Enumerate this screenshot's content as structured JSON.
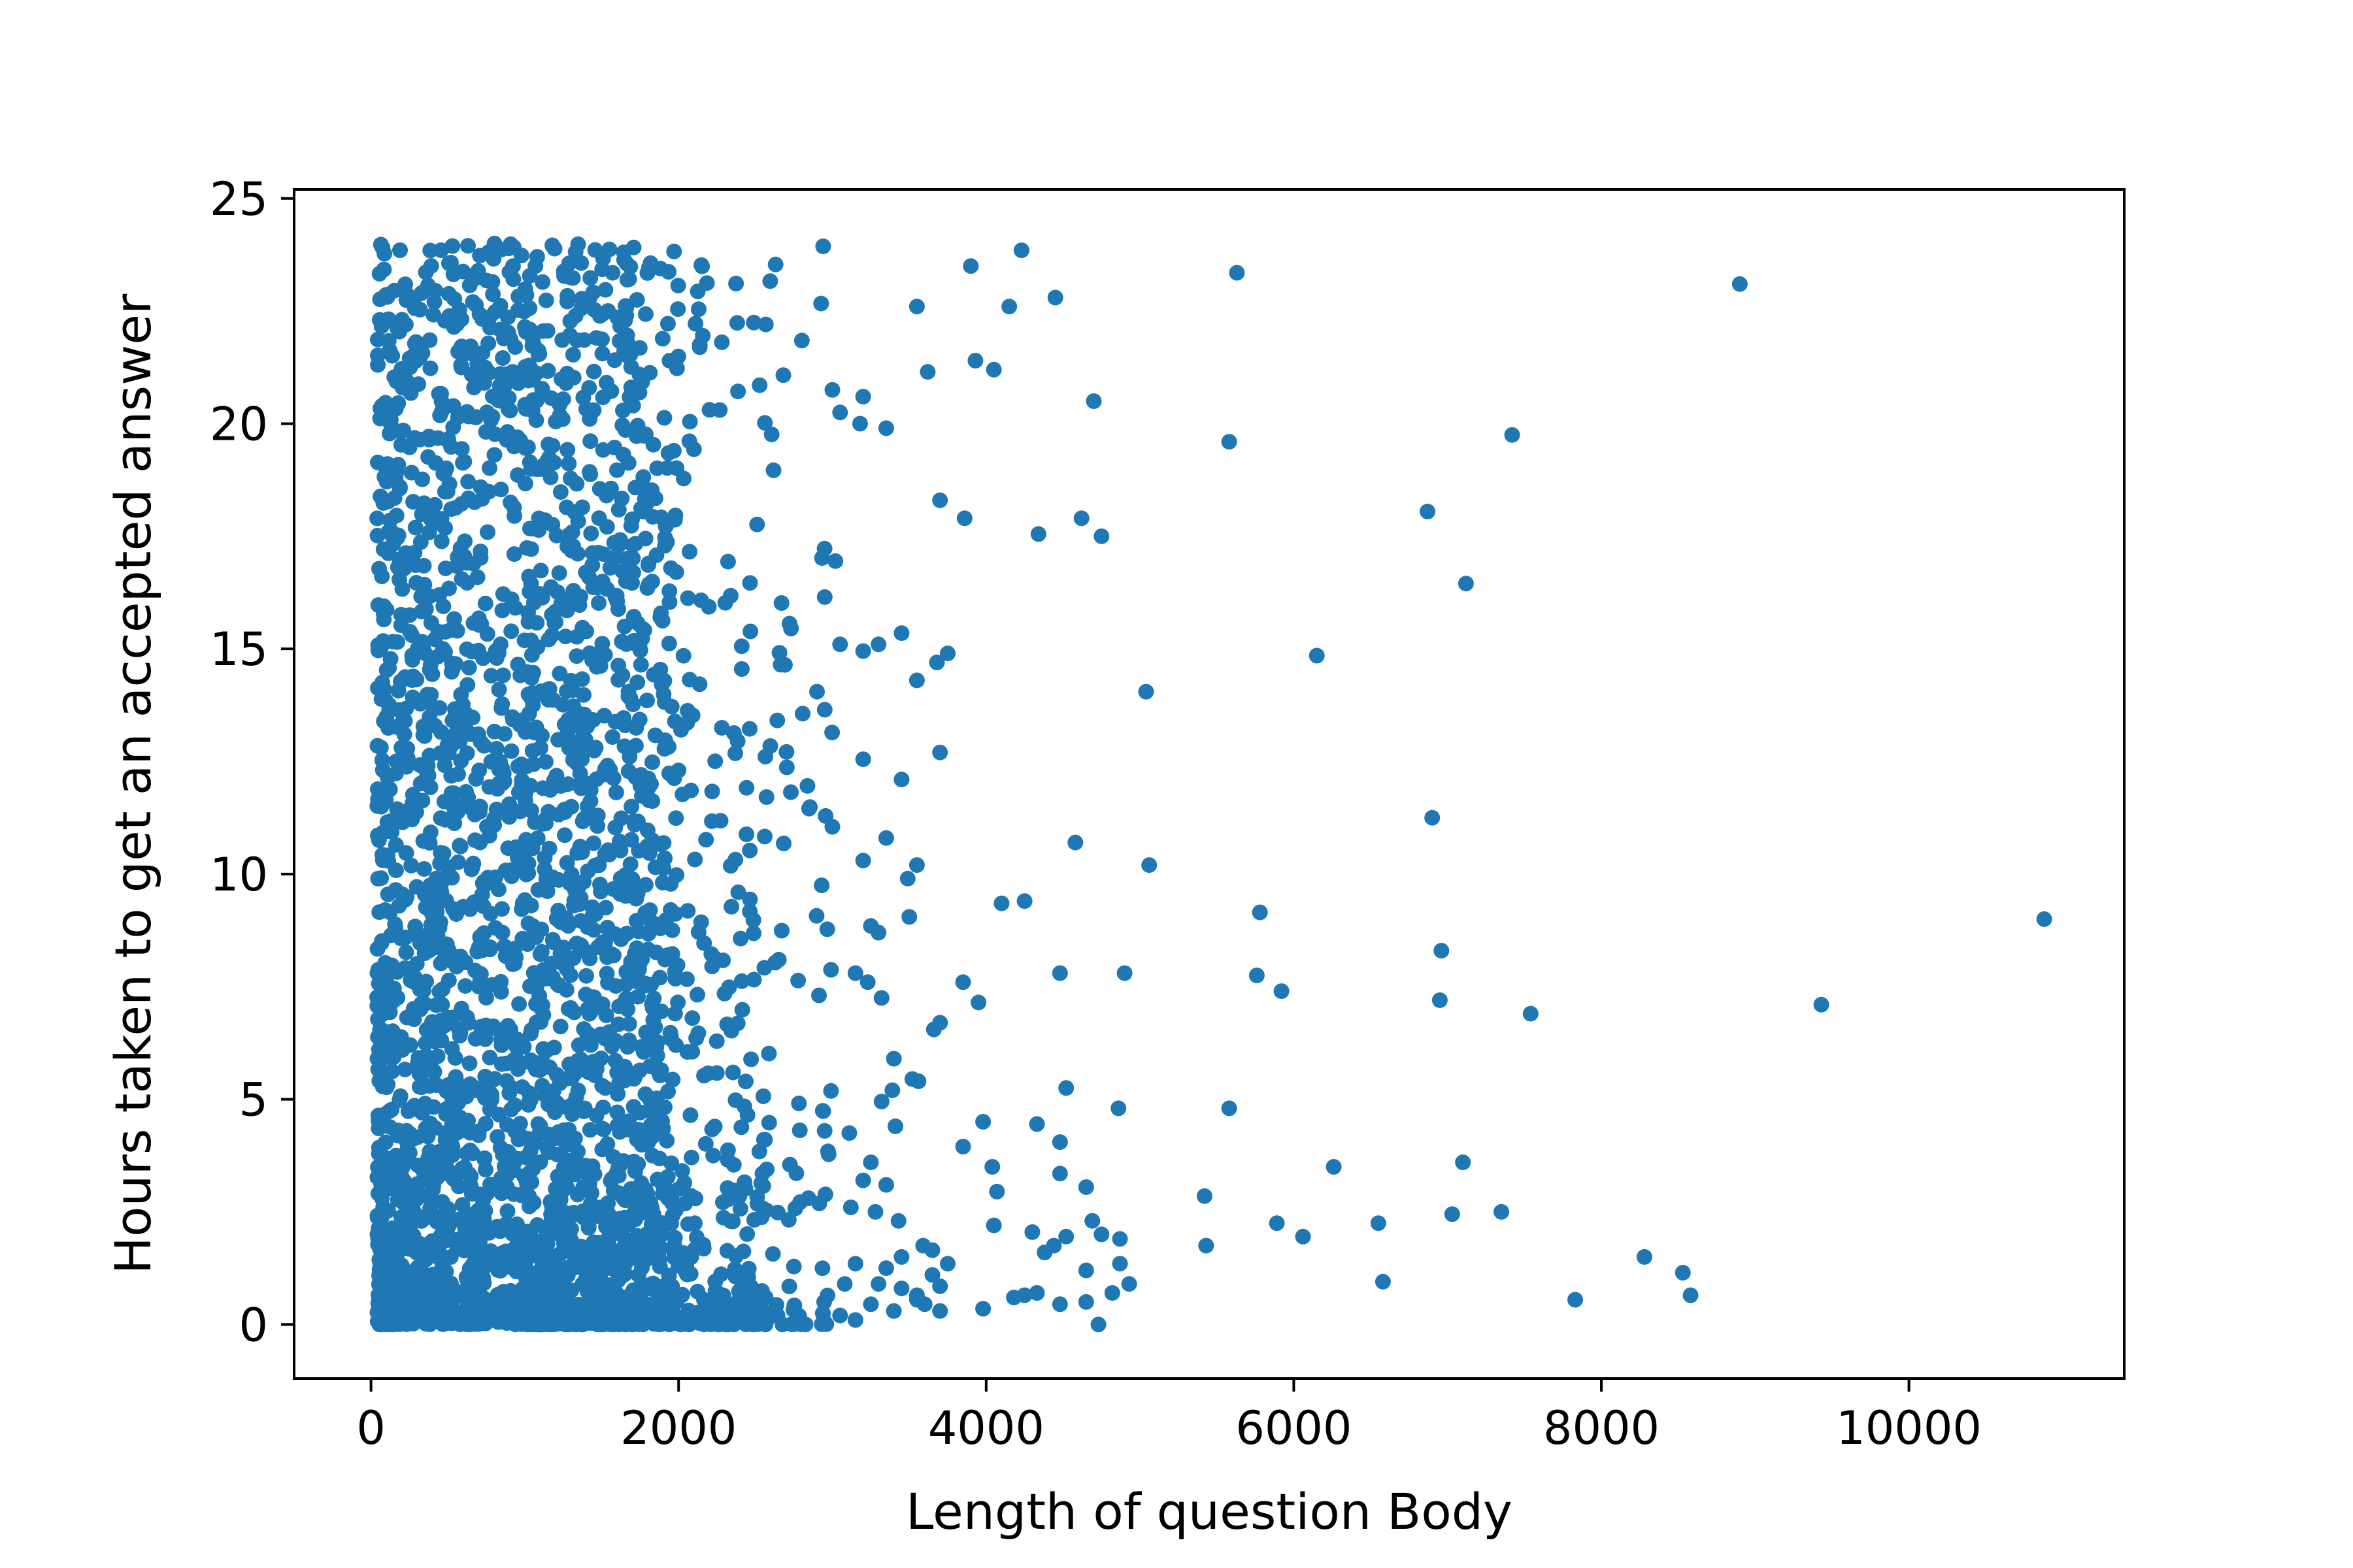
{
  "chart_data": {
    "type": "scatter",
    "title": "",
    "xlabel": "Length of question Body",
    "ylabel": "Hours taken to get an accepted answer",
    "xlim": [
      -500,
      11400
    ],
    "ylim": [
      -1.2,
      25.2
    ],
    "xticks": [
      0,
      2000,
      4000,
      6000,
      8000,
      10000
    ],
    "xtick_labels": [
      "0",
      "2000",
      "4000",
      "6000",
      "8000",
      "10000"
    ],
    "yticks": [
      0,
      5,
      10,
      15,
      20,
      25
    ],
    "ytick_labels": [
      "0",
      "5",
      "10",
      "15",
      "20",
      "25"
    ],
    "grid": false,
    "legend": "none",
    "marker_color": "#1f77b4",
    "series": [
      {
        "points": [
          [
            8900,
            23.1
          ],
          [
            5630,
            23.35
          ],
          [
            4230,
            23.85
          ],
          [
            3900,
            23.5
          ],
          [
            4450,
            22.8
          ],
          [
            4150,
            22.6
          ],
          [
            3550,
            22.6
          ],
          [
            4050,
            21.2
          ],
          [
            3930,
            21.4
          ],
          [
            3620,
            21.15
          ],
          [
            4700,
            20.5
          ],
          [
            7420,
            19.75
          ],
          [
            5580,
            19.6
          ],
          [
            6870,
            18.05
          ],
          [
            3700,
            18.3
          ],
          [
            3860,
            17.9
          ],
          [
            4620,
            17.9
          ],
          [
            4340,
            17.55
          ],
          [
            4750,
            17.5
          ],
          [
            7120,
            16.45
          ],
          [
            6150,
            14.85
          ],
          [
            3750,
            14.9
          ],
          [
            5040,
            14.05
          ],
          [
            3550,
            14.3
          ],
          [
            3700,
            12.7
          ],
          [
            6900,
            11.25
          ],
          [
            4580,
            10.7
          ],
          [
            5060,
            10.2
          ],
          [
            3550,
            10.2
          ],
          [
            10880,
            9.0
          ],
          [
            5780,
            9.15
          ],
          [
            4250,
            9.4
          ],
          [
            4100,
            9.35
          ],
          [
            6960,
            8.3
          ],
          [
            4480,
            7.8
          ],
          [
            4900,
            7.8
          ],
          [
            5760,
            7.75
          ],
          [
            5920,
            7.4
          ],
          [
            3850,
            7.6
          ],
          [
            3950,
            7.15
          ],
          [
            6950,
            7.2
          ],
          [
            9430,
            7.1
          ],
          [
            7540,
            6.9
          ],
          [
            3700,
            6.7
          ],
          [
            4520,
            5.25
          ],
          [
            5580,
            4.8
          ],
          [
            4860,
            4.8
          ],
          [
            3980,
            4.5
          ],
          [
            4330,
            4.45
          ],
          [
            3850,
            3.95
          ],
          [
            4480,
            4.05
          ],
          [
            4040,
            3.5
          ],
          [
            6260,
            3.5
          ],
          [
            7100,
            3.6
          ],
          [
            4480,
            3.35
          ],
          [
            4070,
            2.95
          ],
          [
            4650,
            3.05
          ],
          [
            5420,
            2.85
          ],
          [
            7030,
            2.45
          ],
          [
            7350,
            2.5
          ],
          [
            5890,
            2.25
          ],
          [
            6550,
            2.25
          ],
          [
            4050,
            2.2
          ],
          [
            4690,
            2.3
          ],
          [
            4750,
            2.0
          ],
          [
            4300,
            2.05
          ],
          [
            6060,
            1.95
          ],
          [
            4520,
            1.95
          ],
          [
            4870,
            1.9
          ],
          [
            5430,
            1.75
          ],
          [
            4380,
            1.6
          ],
          [
            4440,
            1.75
          ],
          [
            8280,
            1.5
          ],
          [
            4870,
            1.35
          ],
          [
            8530,
            1.15
          ],
          [
            4650,
            1.2
          ],
          [
            4930,
            0.9
          ],
          [
            6580,
            0.95
          ],
          [
            4820,
            0.7
          ],
          [
            8580,
            0.65
          ],
          [
            4180,
            0.6
          ],
          [
            4330,
            0.7
          ],
          [
            4250,
            0.65
          ],
          [
            4650,
            0.5
          ],
          [
            4480,
            0.45
          ],
          [
            7830,
            0.55
          ],
          [
            3980,
            0.35
          ],
          [
            4730,
            0.0
          ],
          [
            3450,
            15.35
          ],
          [
            3300,
            15.1
          ],
          [
            3200,
            14.95
          ],
          [
            3680,
            14.7
          ],
          [
            3450,
            12.1
          ],
          [
            3200,
            12.55
          ],
          [
            3350,
            10.8
          ],
          [
            3490,
            9.9
          ],
          [
            3200,
            10.3
          ],
          [
            3300,
            8.7
          ],
          [
            3500,
            9.05
          ],
          [
            3250,
            8.85
          ],
          [
            3150,
            7.8
          ],
          [
            3230,
            7.6
          ],
          [
            3320,
            7.25
          ],
          [
            3660,
            6.55
          ],
          [
            3400,
            5.9
          ],
          [
            3520,
            5.45
          ],
          [
            3390,
            5.2
          ],
          [
            3320,
            4.95
          ],
          [
            3560,
            5.4
          ],
          [
            3410,
            4.4
          ],
          [
            3110,
            4.25
          ],
          [
            3250,
            3.6
          ],
          [
            3200,
            3.2
          ],
          [
            3350,
            3.1
          ],
          [
            3280,
            2.5
          ],
          [
            3430,
            2.3
          ],
          [
            3120,
            2.6
          ],
          [
            3590,
            1.75
          ],
          [
            3650,
            1.65
          ],
          [
            3450,
            1.5
          ],
          [
            3350,
            1.25
          ],
          [
            3150,
            1.35
          ],
          [
            3750,
            1.35
          ],
          [
            3650,
            1.1
          ],
          [
            3300,
            0.9
          ],
          [
            3450,
            0.8
          ],
          [
            3700,
            0.85
          ],
          [
            3550,
            0.65
          ],
          [
            3600,
            0.45
          ],
          [
            3250,
            0.45
          ],
          [
            3700,
            0.3
          ],
          [
            3400,
            0.3
          ],
          [
            3050,
            0.2
          ],
          [
            3150,
            0.1
          ],
          [
            3550,
            0.55
          ],
          [
            3080,
            0.9
          ],
          [
            3200,
            20.6
          ],
          [
            3000,
            20.75
          ],
          [
            3350,
            19.9
          ],
          [
            3180,
            20.0
          ],
          [
            3050,
            20.25
          ],
          [
            3020,
            16.95
          ],
          [
            2950,
            16.15
          ],
          [
            3050,
            15.1
          ],
          [
            2900,
            14.05
          ],
          [
            2950,
            13.65
          ],
          [
            3000,
            11.05
          ],
          [
            2930,
            9.75
          ]
        ]
      }
    ]
  }
}
